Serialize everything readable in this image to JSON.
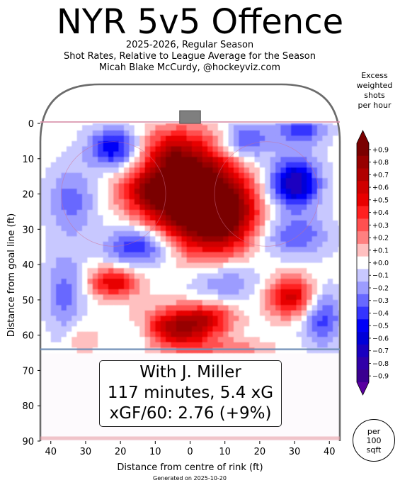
{
  "header": {
    "title": "NYR 5v5 Offence",
    "subtitle_lines": [
      "2025-2026, Regular Season",
      "Shot Rates, Relative to League Average for the Season",
      "Micah Blake McCurdy, @hockeyviz.com"
    ]
  },
  "chart_data": {
    "type": "heatmap",
    "title": "NYR 5v5 Offence",
    "xlabel": "Distance from centre of rink (ft)",
    "ylabel": "Distance from goal line (ft)",
    "xlim": [
      -43,
      43
    ],
    "ylim": [
      90,
      -11
    ],
    "x_ticks": [
      {
        "value": -40,
        "label": "40"
      },
      {
        "value": -30,
        "label": "30"
      },
      {
        "value": -20,
        "label": "20"
      },
      {
        "value": -10,
        "label": "10"
      },
      {
        "value": 0,
        "label": "0"
      },
      {
        "value": 10,
        "label": "10"
      },
      {
        "value": 20,
        "label": "20"
      },
      {
        "value": 30,
        "label": "30"
      },
      {
        "value": 40,
        "label": "40"
      }
    ],
    "y_ticks": [
      0,
      10,
      20,
      30,
      40,
      50,
      60,
      70,
      80,
      90
    ],
    "hotspots": [
      {
        "x": 0,
        "y": 20,
        "value": 1.2,
        "sx": 9,
        "sy": 10
      },
      {
        "x": 10,
        "y": 26,
        "value": 0.7,
        "sx": 7,
        "sy": 7
      },
      {
        "x": -12,
        "y": 19,
        "value": 0.45,
        "sx": 6,
        "sy": 4
      },
      {
        "x": -6,
        "y": 8,
        "value": 0.3,
        "sx": 5,
        "sy": 4
      },
      {
        "x": -22,
        "y": 45,
        "value": 0.55,
        "sx": 5,
        "sy": 3
      },
      {
        "x": 29,
        "y": 49,
        "value": 0.6,
        "sx": 5,
        "sy": 4
      },
      {
        "x": -3,
        "y": 58,
        "value": 0.75,
        "sx": 7,
        "sy": 4
      },
      {
        "x": 6,
        "y": 55,
        "value": 0.35,
        "sx": 5,
        "sy": 3
      },
      {
        "x": 12,
        "y": 64,
        "value": 0.2,
        "sx": 8,
        "sy": 2
      },
      {
        "x": -31,
        "y": 61,
        "value": 0.15,
        "sx": 3,
        "sy": 3
      },
      {
        "x": -22,
        "y": 7,
        "value": -0.55,
        "sx": 5,
        "sy": 4
      },
      {
        "x": 30,
        "y": 17,
        "value": -0.75,
        "sx": 5,
        "sy": 5
      },
      {
        "x": 16,
        "y": 5,
        "value": -0.4,
        "sx": 5,
        "sy": 4
      },
      {
        "x": -14,
        "y": 35,
        "value": -0.5,
        "sx": 7,
        "sy": 4
      },
      {
        "x": -34,
        "y": 22,
        "value": -0.3,
        "sx": 5,
        "sy": 7
      },
      {
        "x": 30,
        "y": 32,
        "value": -0.35,
        "sx": 7,
        "sy": 4
      },
      {
        "x": -36,
        "y": 48,
        "value": -0.3,
        "sx": 4,
        "sy": 8
      },
      {
        "x": 38,
        "y": 55,
        "value": -0.4,
        "sx": 4,
        "sy": 6
      },
      {
        "x": 10,
        "y": 45,
        "value": -0.25,
        "sx": 8,
        "sy": 4
      },
      {
        "x": 32,
        "y": 2,
        "value": -0.4,
        "sx": 5,
        "sy": 3
      },
      {
        "x": -15,
        "y": 60,
        "value": -0.15,
        "sx": 3,
        "sy": 3
      }
    ],
    "levels": [
      -0.9,
      -0.8,
      -0.7,
      -0.6,
      -0.5,
      -0.4,
      -0.3,
      -0.2,
      -0.1,
      0.0,
      0.1,
      0.2,
      0.3,
      0.4,
      0.5,
      0.6,
      0.7,
      0.8,
      0.9
    ],
    "colorbar": {
      "title_lines": [
        "Excess",
        "weighted",
        "shots",
        "per hour"
      ],
      "tick_labels": [
        "+0.9",
        "+0.8",
        "+0.7",
        "+0.6",
        "+0.5",
        "+0.4",
        "+0.3",
        "+0.2",
        "+0.1",
        "+0.0",
        "−0.1",
        "−0.2",
        "−0.3",
        "−0.4",
        "−0.5",
        "−0.6",
        "−0.7",
        "−0.8",
        "−0.9"
      ],
      "colors": [
        "#7a0000",
        "#970000",
        "#b00000",
        "#cf0000",
        "#e80000",
        "#ff2020",
        "#ff5050",
        "#ff8080",
        "#ffc0c0",
        "#ffffff",
        "#c8c8ff",
        "#9c9cff",
        "#6868ff",
        "#3434ff",
        "#0000f8",
        "#0000d8",
        "#1a00c0",
        "#3000a8",
        "#3a0090"
      ],
      "under_color": "#5a00a0",
      "over_color": "#7a0000"
    },
    "annotation": {
      "lines": [
        "With J. Miller",
        "117 minutes, 5.4 xG",
        "xGF/60: 2.76 (+9%)"
      ]
    }
  },
  "per_label_lines": [
    "per",
    "100",
    "sqft"
  ],
  "footer": "Generated on 2025-10-20"
}
